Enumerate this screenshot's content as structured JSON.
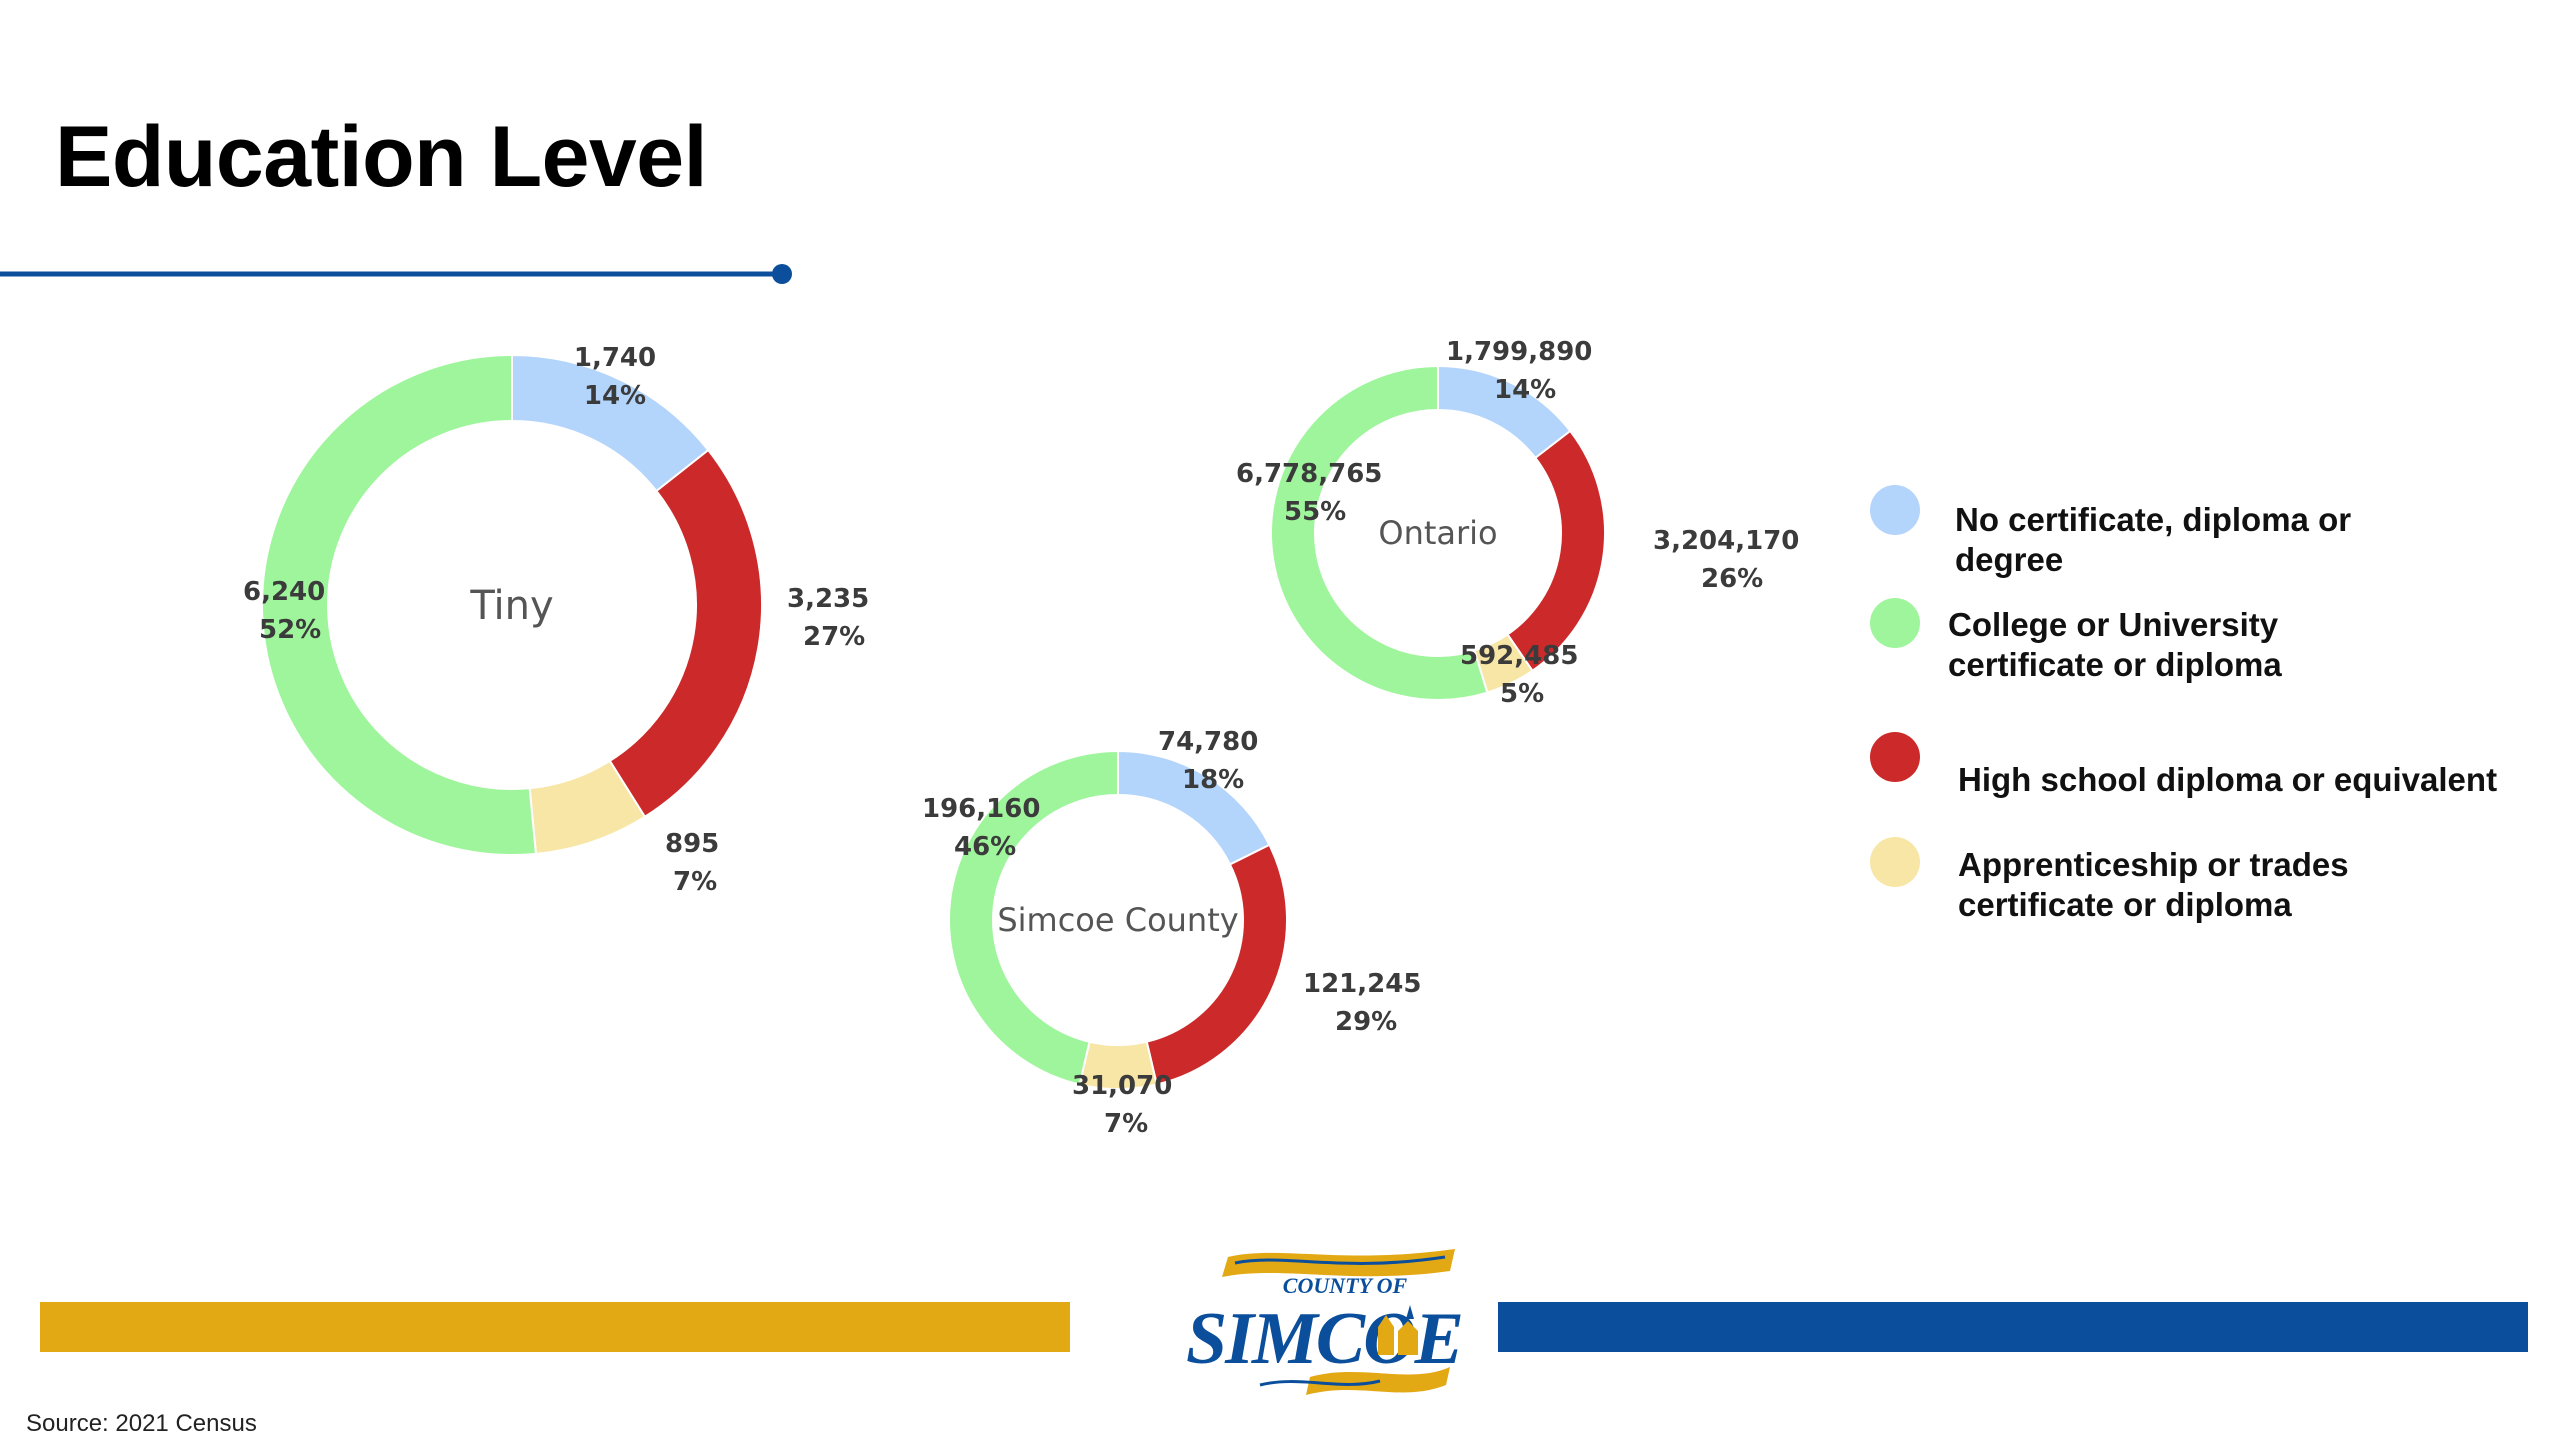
{
  "title": "Education Level",
  "source": "Source: 2021 Census",
  "colors": {
    "no_certificate": "#b3d4fb",
    "college_university": "#9ff59c",
    "high_school": "#cc2a2a",
    "apprenticeship": "#f8e6a6",
    "accent_rule": "#0b4f9c",
    "bar_gold": "#e3a914",
    "bar_blue": "#0b4f9c"
  },
  "legend": [
    {
      "label": "No certificate, diploma or degree",
      "color": "#b3d4fb"
    },
    {
      "label": "College or University certificate or diploma",
      "color": "#9ff59c"
    },
    {
      "label": "High school diploma or equivalent",
      "color": "#cc2a2a"
    },
    {
      "label": "Apprenticeship or trades certificate or diploma",
      "color": "#f8e6a6"
    }
  ],
  "logo": {
    "text_top": "COUNTY OF",
    "text_main": "SIMCOE"
  },
  "chart_data": [
    {
      "type": "pie",
      "variant": "donut",
      "center_label": "Tiny",
      "categories": [
        "No certificate, diploma or degree",
        "High school diploma or equivalent",
        "Apprenticeship or trades certificate or diploma",
        "College or University certificate or diploma"
      ],
      "values": [
        1740,
        3235,
        895,
        6240
      ],
      "value_labels": [
        "1,740",
        "3,235",
        "895",
        "6,240"
      ],
      "percent_labels": [
        "14%",
        "27%",
        "7%",
        "52%"
      ],
      "colors": [
        "#b3d4fb",
        "#cc2a2a",
        "#f8e6a6",
        "#9ff59c"
      ]
    },
    {
      "type": "pie",
      "variant": "donut",
      "center_label": "Ontario",
      "categories": [
        "No certificate, diploma or degree",
        "High school diploma or equivalent",
        "Apprenticeship or trades certificate or diploma",
        "College or University certificate or diploma"
      ],
      "values": [
        1799890,
        3204170,
        592485,
        6778765
      ],
      "value_labels": [
        "1,799,890",
        "3,204,170",
        "592,485",
        "6,778,765"
      ],
      "percent_labels": [
        "14%",
        "26%",
        "5%",
        "55%"
      ],
      "colors": [
        "#b3d4fb",
        "#cc2a2a",
        "#f8e6a6",
        "#9ff59c"
      ]
    },
    {
      "type": "pie",
      "variant": "donut",
      "center_label": "Simcoe County",
      "categories": [
        "No certificate, diploma or degree",
        "High school diploma or equivalent",
        "Apprenticeship or trades certificate or diploma",
        "College or University certificate or diploma"
      ],
      "values": [
        74780,
        121245,
        31070,
        196160
      ],
      "value_labels": [
        "74,780",
        "121,245",
        "31,070",
        "196,160"
      ],
      "percent_labels": [
        "18%",
        "29%",
        "7%",
        "46%"
      ],
      "colors": [
        "#b3d4fb",
        "#cc2a2a",
        "#f8e6a6",
        "#9ff59c"
      ]
    }
  ]
}
